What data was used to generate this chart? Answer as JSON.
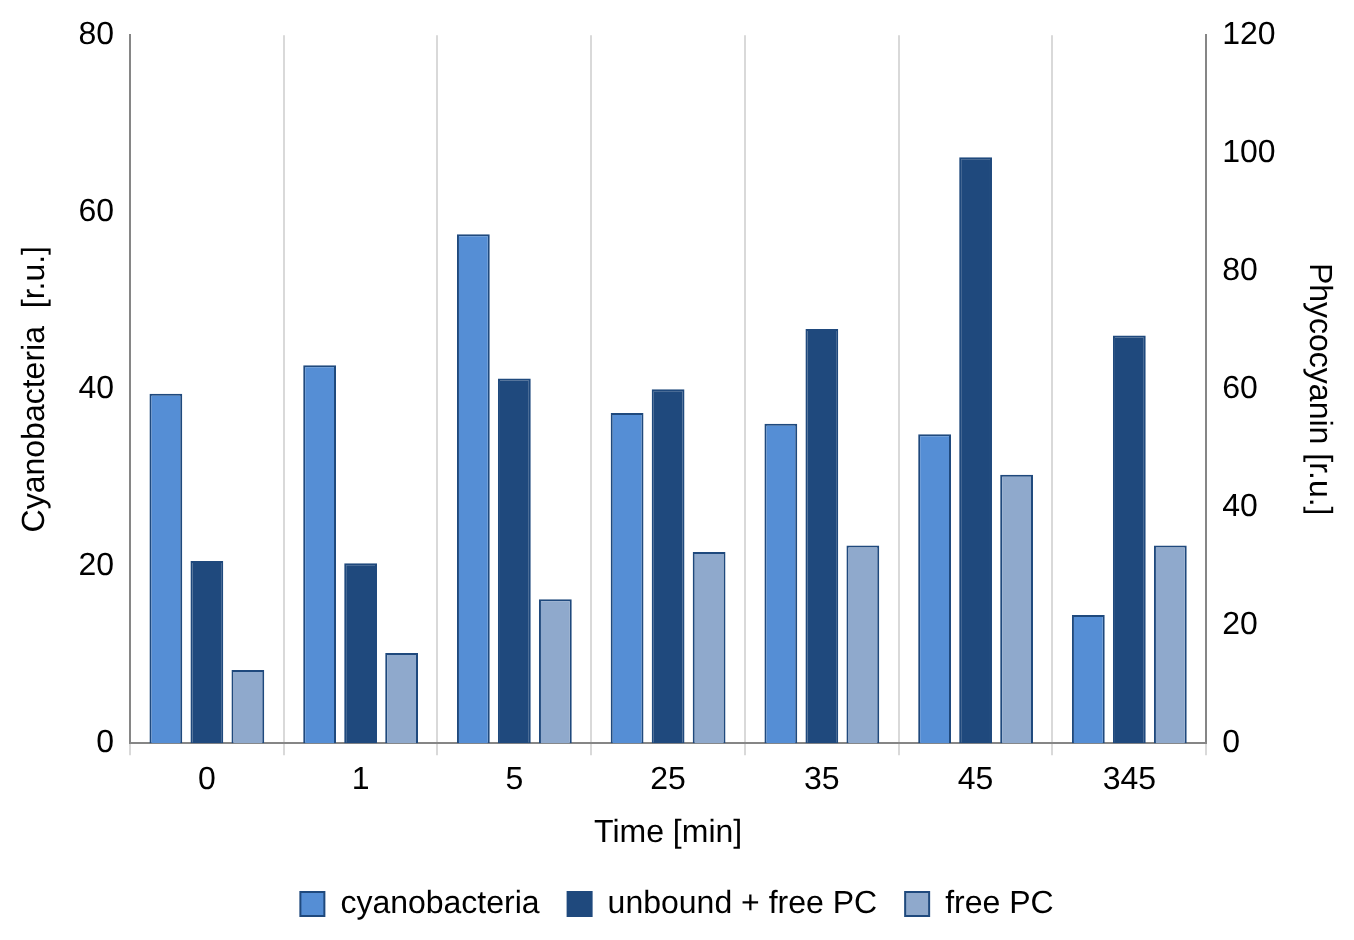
{
  "chart_data": {
    "type": "bar",
    "xlabel": "Time [min]",
    "ylabel": "Cyanobacteria  [r.u.]",
    "y2label": "Phycocyanin [r.u.]",
    "categories": [
      "0",
      "1",
      "5",
      "25",
      "35",
      "45",
      "345"
    ],
    "series": [
      {
        "name": "cyanobacteria",
        "color": "#558ed5",
        "values": [
          39.5,
          42.7,
          57.5,
          37.3,
          36.1,
          34.9,
          14.5
        ]
      },
      {
        "name": "unbound + free PC",
        "color": "#1f497d",
        "axis": "y2",
        "values": [
          30.9,
          30.5,
          61.8,
          60,
          70.2,
          99.3,
          69.1
        ]
      },
      {
        "name": "free PC",
        "color": "#8fa9cc",
        "axis": "y2",
        "values": [
          12.4,
          15.3,
          24.4,
          32.4,
          33.5,
          45.5,
          33.5
        ]
      }
    ],
    "ylim": [
      0,
      80
    ],
    "yticks": [
      0,
      20,
      40,
      60,
      80
    ],
    "y2lim": [
      0,
      120
    ],
    "y2ticks": [
      0,
      20,
      40,
      60,
      80,
      100,
      120
    ],
    "grid": "x",
    "legend": "bottom"
  }
}
